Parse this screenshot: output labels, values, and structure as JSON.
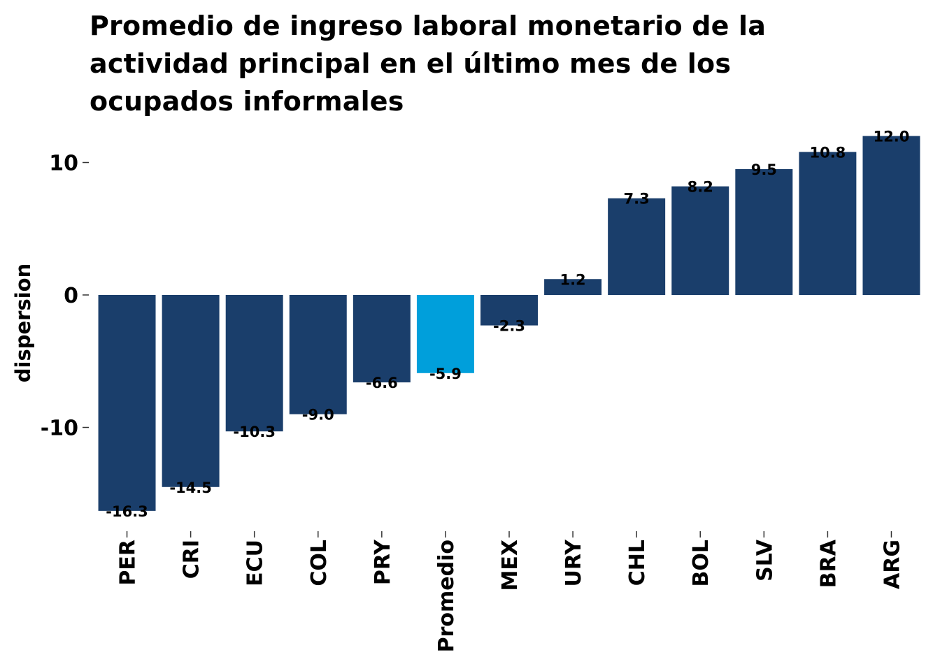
{
  "chart_data": {
    "type": "bar",
    "title": "Promedio de ingreso laboral monetario de la actividad principal en el último mes de los ocupados informales",
    "ylabel": "dispersion",
    "xlabel": "",
    "categories": [
      "PER",
      "CRI",
      "ECU",
      "COL",
      "PRY",
      "Promedio",
      "MEX",
      "URY",
      "CHL",
      "BOL",
      "SLV",
      "BRA",
      "ARG"
    ],
    "values": [
      -16.3,
      -14.5,
      -10.3,
      -9.0,
      -6.6,
      -5.9,
      -2.3,
      1.2,
      7.3,
      8.2,
      9.5,
      10.8,
      12.0
    ],
    "value_labels": [
      "-16.3",
      "-14.5",
      "-10.3",
      "-9.0",
      "-6.6",
      "-5.9",
      "-2.3",
      "1.2",
      "7.3",
      "8.2",
      "9.5",
      "10.8",
      "12.0"
    ],
    "yticks": [
      -10,
      0,
      10
    ],
    "ytick_labels": [
      "-10",
      "0",
      "10"
    ],
    "ylim": [
      -17.5,
      12.8
    ],
    "grid": false,
    "legend": false,
    "highlight_category": "Promedio",
    "colors": {
      "bar": "#1a3e6b",
      "highlight": "#009fdb",
      "text": "#000000",
      "tick": "#333333"
    }
  }
}
